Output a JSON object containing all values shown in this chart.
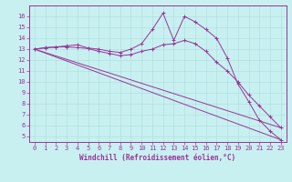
{
  "bg_color": "#c8f0f0",
  "line_color": "#993399",
  "grid_color": "#aadddd",
  "xlabel": "Windchill (Refroidissement éolien,°C)",
  "xlim": [
    -0.5,
    23.5
  ],
  "ylim": [
    4.5,
    17.0
  ],
  "yticks": [
    5,
    6,
    7,
    8,
    9,
    10,
    11,
    12,
    13,
    14,
    15,
    16
  ],
  "xticks": [
    0,
    1,
    2,
    3,
    4,
    5,
    6,
    7,
    8,
    9,
    10,
    11,
    12,
    13,
    14,
    15,
    16,
    17,
    18,
    19,
    20,
    21,
    22,
    23
  ],
  "series": [
    {
      "x": [
        0,
        1,
        2,
        3,
        4,
        5,
        6,
        7,
        8,
        9,
        10,
        11,
        12,
        13,
        14,
        15,
        16,
        17,
        18,
        19,
        20,
        21,
        22,
        23
      ],
      "y": [
        13.0,
        13.15,
        13.2,
        13.3,
        13.4,
        13.1,
        13.0,
        12.8,
        12.7,
        13.0,
        13.5,
        14.8,
        16.3,
        13.8,
        16.0,
        15.5,
        14.8,
        14.0,
        12.2,
        9.8,
        8.2,
        6.5,
        5.5,
        4.7
      ],
      "marker": true
    },
    {
      "x": [
        0,
        1,
        2,
        3,
        4,
        5,
        6,
        7,
        8,
        9,
        10,
        11,
        12,
        13,
        14,
        15,
        16,
        17,
        18,
        19,
        20,
        21,
        22,
        23
      ],
      "y": [
        13.0,
        13.1,
        13.2,
        13.2,
        13.15,
        13.05,
        12.8,
        12.6,
        12.4,
        12.5,
        12.8,
        13.0,
        13.4,
        13.5,
        13.8,
        13.5,
        12.8,
        11.8,
        11.0,
        10.0,
        8.8,
        7.8,
        6.8,
        5.8
      ],
      "marker": true
    },
    {
      "x": [
        0,
        23
      ],
      "y": [
        13.0,
        5.8
      ],
      "marker": false
    },
    {
      "x": [
        0,
        23
      ],
      "y": [
        13.0,
        4.7
      ],
      "marker": false
    }
  ],
  "tick_fontsize": 5,
  "xlabel_fontsize": 5.5,
  "linewidth": 0.7,
  "markersize": 2.5
}
